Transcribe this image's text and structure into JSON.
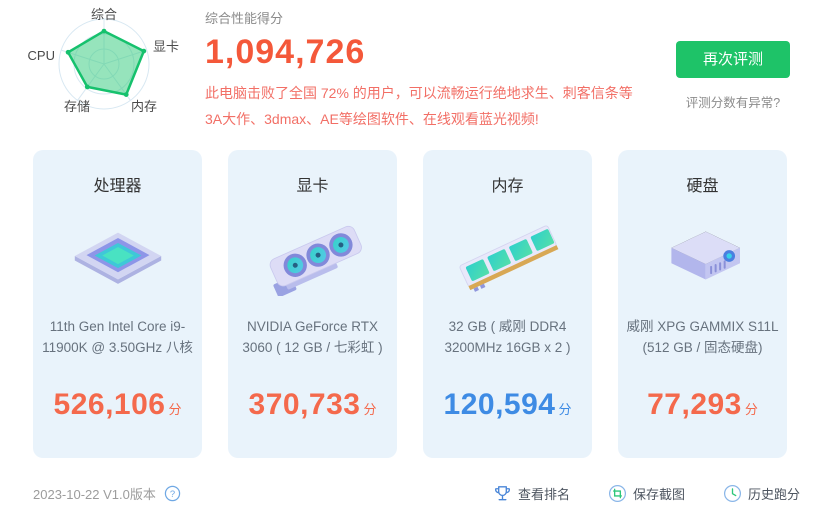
{
  "chart_data": {
    "type": "radar",
    "categories": [
      "综合",
      "显卡",
      "内存",
      "存储",
      "CPU"
    ],
    "values": [
      0.73,
      0.93,
      0.84,
      0.63,
      0.84
    ],
    "value_note": "relative fill per axis estimated from plot, 0-1 of outer ring",
    "rings": 3,
    "legend_position": "none"
  },
  "summary": {
    "label": "综合性能得分",
    "score": "1,094,726",
    "desc_line1": "此电脑击败了全国 72% 的用户，可以流畅运行绝地求生、刺客信条等",
    "desc_line2": "3A大作、3dmax、AE等绘图软件、在线观看蓝光视频!"
  },
  "actions": {
    "retest_label": "再次评测",
    "anomaly_label": "评测分数有异常?"
  },
  "cards": [
    {
      "title": "处理器",
      "icon": "cpu-chip-icon",
      "name_line1": "11th Gen Intel Core i9-",
      "name_line2": "11900K @ 3.50GHz 八核",
      "score": "526,106",
      "unit": "分",
      "score_color": "#f4694c"
    },
    {
      "title": "显卡",
      "icon": "gpu-card-icon",
      "name_line1": "NVIDIA GeForce RTX",
      "name_line2": "3060 ( 12 GB / 七彩虹 )",
      "score": "370,733",
      "unit": "分",
      "score_color": "#f4694c"
    },
    {
      "title": "内存",
      "icon": "ram-stick-icon",
      "name_line1": "32 GB ( 威刚 DDR4",
      "name_line2": "3200MHz 16GB x 2 )",
      "score": "120,594",
      "unit": "分",
      "score_color": "#3e8be4"
    },
    {
      "title": "硬盘",
      "icon": "ssd-drive-icon",
      "name_line1": "威刚 XPG GAMMIX S11L",
      "name_line2": "(512 GB / 固态硬盘)",
      "score": "77,293",
      "unit": "分",
      "score_color": "#f4694c"
    }
  ],
  "footer": {
    "version": "2023-10-22 V1.0版本",
    "version_help_icon": "question-circle-icon",
    "links": [
      {
        "label": "查看排名",
        "icon": "trophy-icon"
      },
      {
        "label": "保存截图",
        "icon": "screenshot-icon"
      },
      {
        "label": "历史跑分",
        "icon": "clock-icon"
      }
    ]
  },
  "colors": {
    "score_orange": "#f4583a",
    "desc_red": "#f26f66",
    "card_score_orange": "#f4694c",
    "card_score_blue": "#3e8be4",
    "button_green": "#1ec368",
    "radar_stroke": "#16c16d",
    "radar_fill": "#2ec97a",
    "radar_grid": "#d8e8f2",
    "card_bg": "#e9f3fb"
  }
}
